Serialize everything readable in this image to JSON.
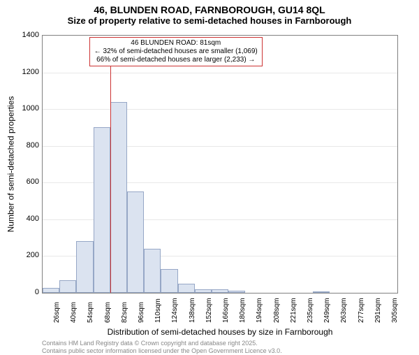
{
  "title": "46, BLUNDEN ROAD, FARNBOROUGH, GU14 8QL",
  "subtitle": "Size of property relative to semi-detached houses in Farnborough",
  "ylabel": "Number of semi-detached properties",
  "xlabel": "Distribution of semi-detached houses by size in Farnborough",
  "chart": {
    "type": "histogram",
    "x_categories": [
      "26sqm",
      "40sqm",
      "54sqm",
      "68sqm",
      "82sqm",
      "96sqm",
      "110sqm",
      "124sqm",
      "138sqm",
      "152sqm",
      "166sqm",
      "180sqm",
      "194sqm",
      "208sqm",
      "221sqm",
      "235sqm",
      "249sqm",
      "263sqm",
      "277sqm",
      "291sqm",
      "305sqm"
    ],
    "values": [
      25,
      70,
      280,
      900,
      1040,
      550,
      240,
      130,
      50,
      20,
      20,
      10,
      0,
      0,
      0,
      0,
      5,
      0,
      0,
      0,
      0
    ],
    "bar_fill": "#dbe3f0",
    "bar_border": "#96a7c6",
    "ylim": [
      0,
      1400
    ],
    "yticks": [
      0,
      200,
      400,
      600,
      800,
      1000,
      1200,
      1400
    ],
    "grid_color": "#e8e8e8",
    "plot_border_color": "#808080",
    "background_color": "#ffffff",
    "tick_fontsize": 10,
    "label_fontsize": 12
  },
  "annotation": {
    "line1": "46 BLUNDEN ROAD: 81sqm",
    "line2": "← 32% of semi-detached houses are smaller (1,069)",
    "line3": "66% of semi-detached houses are larger (2,233) →",
    "border_color": "#cc3333",
    "marker_value_sqm": 81,
    "marker_category_index": 4
  },
  "footer": {
    "line1": "Contains HM Land Registry data © Crown copyright and database right 2025.",
    "line2": "Contains public sector information licensed under the Open Government Licence v3.0.",
    "color": "#888888",
    "fontsize": 9
  }
}
